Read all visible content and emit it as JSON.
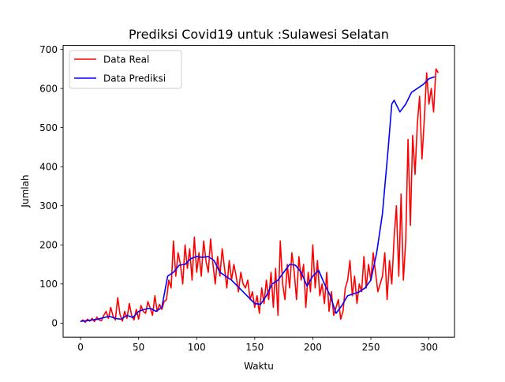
{
  "chart_data": {
    "type": "line",
    "title": "Prediksi Covid19 untuk :Sulawesi Selatan",
    "xlabel": "Waktu",
    "ylabel": "Jumlah",
    "xlim": [
      -15,
      322
    ],
    "ylim": [
      -36,
      710
    ],
    "xticks": [
      0,
      50,
      100,
      150,
      200,
      250,
      300
    ],
    "yticks": [
      0,
      100,
      200,
      300,
      400,
      500,
      600,
      700
    ],
    "grid": false,
    "legend": "top-left",
    "series": [
      {
        "name": "Data Real",
        "color": "#ff0000",
        "x": [
          0,
          2,
          4,
          6,
          8,
          10,
          12,
          14,
          16,
          18,
          20,
          22,
          24,
          26,
          28,
          30,
          32,
          34,
          36,
          38,
          40,
          42,
          44,
          46,
          48,
          50,
          52,
          54,
          56,
          58,
          60,
          62,
          64,
          66,
          68,
          70,
          72,
          74,
          76,
          78,
          80,
          82,
          84,
          86,
          88,
          90,
          92,
          94,
          96,
          98,
          100,
          102,
          104,
          106,
          108,
          110,
          112,
          114,
          116,
          118,
          120,
          122,
          124,
          126,
          128,
          130,
          132,
          134,
          136,
          138,
          140,
          142,
          144,
          146,
          148,
          150,
          152,
          154,
          156,
          158,
          160,
          162,
          164,
          166,
          168,
          170,
          172,
          174,
          176,
          178,
          180,
          182,
          184,
          186,
          188,
          190,
          192,
          194,
          196,
          198,
          200,
          202,
          204,
          206,
          208,
          210,
          212,
          214,
          216,
          218,
          220,
          222,
          224,
          226,
          228,
          230,
          232,
          234,
          236,
          238,
          240,
          242,
          244,
          246,
          248,
          250,
          252,
          254,
          256,
          258,
          260,
          262,
          264,
          266,
          268,
          270,
          272,
          274,
          276,
          278,
          280,
          282,
          284,
          286,
          288,
          290,
          292,
          294,
          296,
          298,
          300,
          302,
          304,
          306,
          308
        ],
        "values": [
          3,
          8,
          2,
          10,
          5,
          12,
          4,
          15,
          8,
          6,
          20,
          30,
          12,
          40,
          18,
          8,
          65,
          22,
          5,
          30,
          12,
          50,
          20,
          8,
          35,
          10,
          45,
          30,
          25,
          55,
          38,
          20,
          70,
          30,
          48,
          35,
          55,
          60,
          110,
          90,
          210,
          120,
          180,
          150,
          100,
          200,
          140,
          190,
          110,
          220,
          130,
          180,
          120,
          210,
          160,
          130,
          215,
          150,
          100,
          170,
          120,
          190,
          140,
          90,
          160,
          110,
          150,
          120,
          80,
          130,
          100,
          90,
          110,
          60,
          80,
          40,
          70,
          25,
          90,
          50,
          110,
          60,
          130,
          40,
          140,
          20,
          210,
          100,
          60,
          150,
          90,
          180,
          130,
          60,
          170,
          110,
          150,
          40,
          130,
          80,
          200,
          90,
          160,
          70,
          100,
          50,
          130,
          30,
          80,
          20,
          40,
          60,
          10,
          30,
          90,
          110,
          160,
          70,
          120,
          50,
          100,
          80,
          170,
          90,
          150,
          110,
          180,
          130,
          80,
          100,
          120,
          180,
          60,
          160,
          100,
          220,
          300,
          120,
          330,
          110,
          210,
          470,
          250,
          480,
          380,
          510,
          580,
          420,
          520,
          640,
          560,
          600,
          540,
          650,
          640
        ]
      },
      {
        "name": "Data Prediksi",
        "color": "#0000ff",
        "x": [
          0,
          5,
          10,
          15,
          20,
          25,
          30,
          35,
          40,
          45,
          50,
          55,
          60,
          65,
          70,
          75,
          80,
          85,
          90,
          95,
          100,
          105,
          110,
          115,
          120,
          125,
          130,
          135,
          140,
          145,
          150,
          155,
          160,
          165,
          170,
          175,
          180,
          185,
          190,
          195,
          200,
          205,
          210,
          215,
          220,
          225,
          230,
          235,
          240,
          245,
          250,
          255,
          260,
          265,
          268,
          270,
          275,
          280,
          285,
          290,
          295,
          300,
          305
        ],
        "values": [
          5,
          6,
          8,
          10,
          14,
          17,
          12,
          10,
          20,
          14,
          30,
          35,
          38,
          30,
          40,
          120,
          130,
          148,
          150,
          165,
          170,
          168,
          170,
          160,
          130,
          120,
          110,
          95,
          80,
          65,
          50,
          48,
          70,
          100,
          110,
          130,
          150,
          148,
          130,
          95,
          120,
          135,
          100,
          70,
          25,
          45,
          70,
          75,
          80,
          90,
          110,
          180,
          280,
          450,
          560,
          570,
          540,
          560,
          590,
          600,
          610,
          625,
          630
        ]
      }
    ]
  }
}
